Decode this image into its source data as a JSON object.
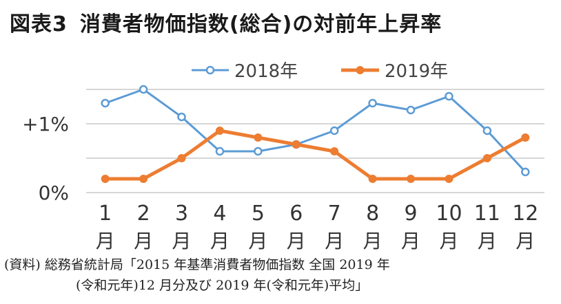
{
  "header": {
    "title_prefix": "図表3",
    "title_main": "消費者物価指数(総合)の対前年上昇率"
  },
  "source": {
    "line1": "(資料) 総務省統計局「2015 年基準消費者物価指数 全国 2019 年",
    "line2": "(令和元年)12 月分及び 2019 年(令和元年)平均」"
  },
  "chart_data": {
    "type": "line",
    "title": "図表3 消費者物価指数(総合)の対前年上昇率",
    "categories": [
      "1",
      "2",
      "3",
      "4",
      "5",
      "6",
      "7",
      "8",
      "9",
      "10",
      "11",
      "12"
    ],
    "category_suffix": "月",
    "y_tick_labels": [
      {
        "value": 0,
        "label": "0%"
      },
      {
        "value": 1,
        "label": "+1%"
      }
    ],
    "ylim": [
      0,
      1.5
    ],
    "gridlines": [
      0,
      0.5,
      1.0,
      1.5
    ],
    "legend_position": "top",
    "series": [
      {
        "name": "2018年",
        "color": "#5b9bd5",
        "values": [
          1.3,
          1.5,
          1.1,
          0.6,
          0.6,
          0.7,
          0.9,
          1.3,
          1.2,
          1.4,
          0.9,
          0.3
        ]
      },
      {
        "name": "2019年",
        "color": "#ed7d31",
        "values": [
          0.2,
          0.2,
          0.5,
          0.9,
          0.8,
          0.7,
          0.6,
          0.2,
          0.2,
          0.2,
          0.5,
          0.8
        ]
      }
    ]
  }
}
